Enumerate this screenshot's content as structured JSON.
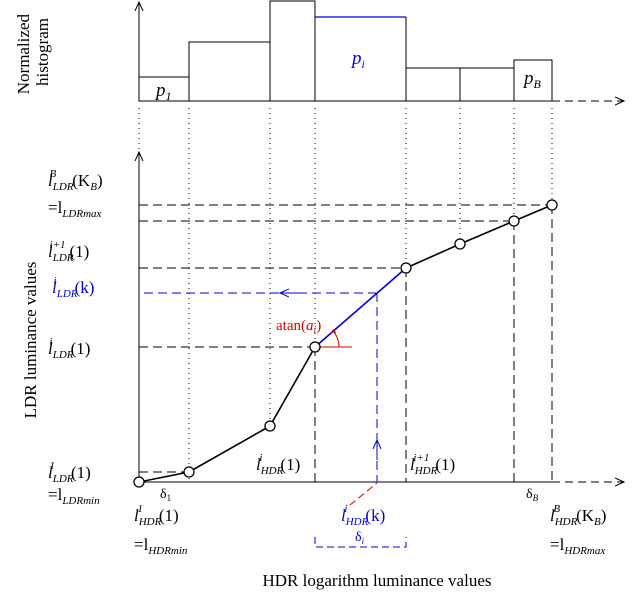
{
  "histogram": {
    "ylabel_line1": "Normalized",
    "ylabel_line2": "histogram",
    "p_first": {
      "base": "p",
      "sub": "1"
    },
    "p_i": {
      "base": "p",
      "sub": "i"
    },
    "p_last": {
      "base": "p",
      "sub": "B"
    }
  },
  "axes": {
    "ylabel": "LDR luminance values",
    "xlabel": "HDR logarithm luminance values"
  },
  "y_labels": {
    "ldr_max": {
      "base": "l",
      "sub": "LDR",
      "sup": "B",
      "arg": "(K",
      "arg_sub": "B",
      "arg_end": ")",
      "line2_prefix": "=l",
      "line2_sub": "LDRmax"
    },
    "ldr_i1": {
      "base": "l",
      "sub": "LDR",
      "sup": "i+1",
      "arg": "(1)"
    },
    "ldr_ik": {
      "base": "l",
      "sub": "LDR",
      "sup": "i",
      "arg": "(k)"
    },
    "ldr_i": {
      "base": "l",
      "sub": "LDR",
      "sup": "i",
      "arg": "(1)"
    },
    "ldr_min": {
      "base": "l",
      "sub": "LDR",
      "sup": "1",
      "arg": "(1)",
      "line2_prefix": "=l",
      "line2_sub": "LDRmin"
    }
  },
  "x_labels": {
    "hdr_min": {
      "base": "l",
      "sub": "HDR",
      "sup": "1",
      "arg": "(1)",
      "line2_prefix": "=l",
      "line2_sub": "HDRmin"
    },
    "hdr_i": {
      "base": "l",
      "sub": "HDR",
      "sup": "i",
      "arg": "(1)"
    },
    "hdr_i1": {
      "base": "l",
      "sub": "HDR",
      "sup": "i+1",
      "arg": "(1)"
    },
    "hdr_ik": {
      "base": "l",
      "sub": "HDR",
      "sup": "i",
      "arg": "(k)"
    },
    "hdr_max": {
      "base": "l",
      "sub": "HDR",
      "sup": "B",
      "arg": "(K",
      "arg_sub": "B",
      "arg_end": ")",
      "line2_prefix": "=l",
      "line2_sub": "HDRmax"
    }
  },
  "deltas": {
    "delta_1": {
      "base": "δ",
      "sub": "1"
    },
    "delta_i": {
      "base": "δ",
      "sub": "i"
    },
    "delta_B": {
      "base": "δ",
      "sub": "B"
    }
  },
  "slope": {
    "prefix": "atan(",
    "base": "a",
    "sub": "i",
    "suffix": ")"
  },
  "colors": {
    "black": "#000000",
    "blue": "#0000dd",
    "red": "#dd0000"
  }
}
